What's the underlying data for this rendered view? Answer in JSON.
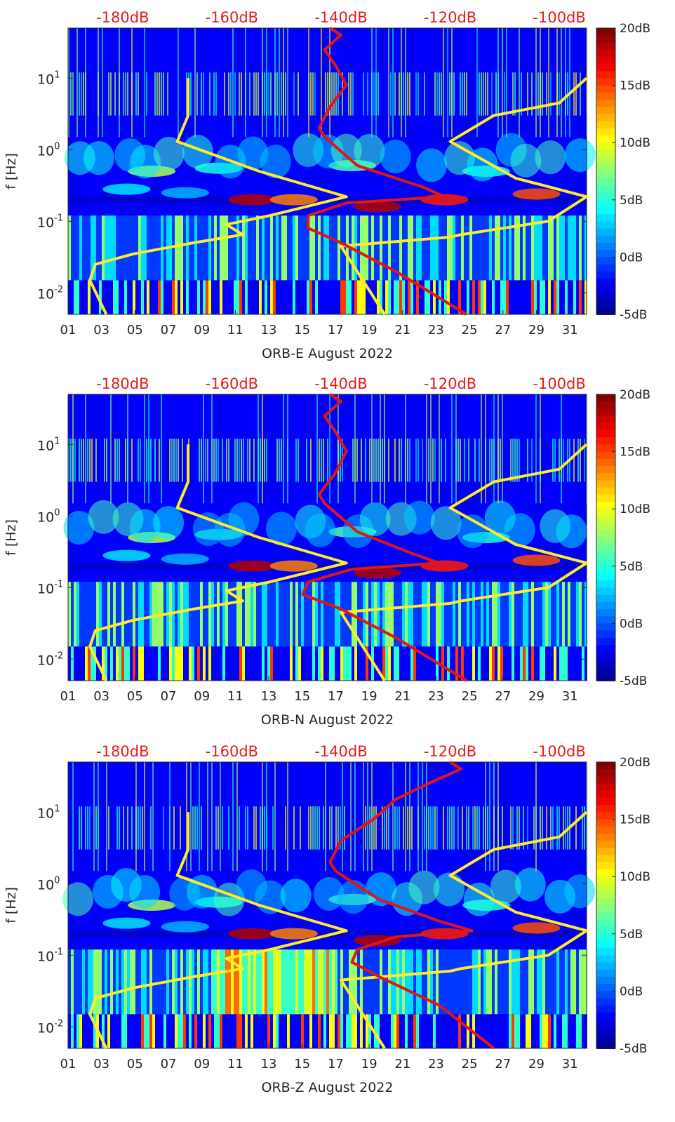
{
  "colors": {
    "db_label": "#e41b1b",
    "noise_model": "#ffeb26",
    "psd_curve": "#e21515",
    "axis": "#262626"
  },
  "colorbar": {
    "ticks": [
      "20dB",
      "15dB",
      "10dB",
      "5dB",
      "0dB",
      "-5dB"
    ],
    "range": [
      -5,
      20
    ]
  },
  "top_axis": {
    "labels": [
      "-180dB",
      "-160dB",
      "-140dB",
      "-120dB",
      "-100dB"
    ],
    "range": [
      -190,
      -95
    ]
  },
  "y_axis": {
    "label": "f [Hz]",
    "ticks": [
      {
        "base": "10",
        "exp": "1",
        "value": 10
      },
      {
        "base": "10",
        "exp": "0",
        "value": 1
      },
      {
        "base": "10",
        "exp": "-1",
        "value": 0.1
      },
      {
        "base": "10",
        "exp": "-2",
        "value": 0.01
      }
    ],
    "range_hz": [
      0.005,
      50
    ]
  },
  "x_axis": {
    "ticks": [
      "01",
      "03",
      "05",
      "07",
      "09",
      "11",
      "13",
      "15",
      "17",
      "19",
      "21",
      "23",
      "25",
      "27",
      "29",
      "31"
    ],
    "range_days": [
      1,
      32
    ]
  },
  "chart_data": [
    {
      "type": "heatmap",
      "title": "ORB-E August 2022",
      "xlabel": "ORB-E August 2022",
      "ylabel": "f [Hz]",
      "series": [
        {
          "name": "noise model (low, high)",
          "color": "#ffeb26",
          "points_db_hz": [
            [
              -183,
              0.005
            ],
            [
              -186,
              0.015
            ],
            [
              -185,
              0.025
            ],
            [
              -178,
              0.035
            ],
            [
              -167,
              0.05
            ],
            [
              -158,
              0.065
            ],
            [
              -161,
              0.09
            ],
            [
              -153,
              0.12
            ],
            [
              -139,
              0.22
            ],
            [
              -155,
              0.5
            ],
            [
              -170,
              1.3
            ],
            [
              -168,
              3
            ],
            [
              -168,
              10
            ],
            [
              -132,
              0.005
            ],
            [
              -140,
              0.045
            ],
            [
              -120,
              0.06
            ],
            [
              -118,
              0.065
            ],
            [
              -102,
              0.1
            ],
            [
              -95,
              0.22
            ],
            [
              -108,
              0.4
            ],
            [
              -120,
              1.3
            ],
            [
              -112,
              3
            ],
            [
              -100,
              4.5
            ],
            [
              -95,
              10
            ]
          ]
        },
        {
          "name": "PSD curve",
          "color": "#e21515",
          "points_db_hz": [
            [
              -117,
              0.005
            ],
            [
              -130,
              0.02
            ],
            [
              -140,
              0.05
            ],
            [
              -146,
              0.08
            ],
            [
              -146,
              0.12
            ],
            [
              -139,
              0.18
            ],
            [
              -121,
              0.22
            ],
            [
              -125,
              0.3
            ],
            [
              -137,
              0.6
            ],
            [
              -143,
              1.5
            ],
            [
              -144,
              2
            ],
            [
              -142,
              4
            ],
            [
              -139,
              8
            ],
            [
              -141,
              15
            ],
            [
              -143,
              25
            ],
            [
              -140,
              40
            ],
            [
              -142,
              50
            ]
          ]
        }
      ]
    },
    {
      "type": "heatmap",
      "title": "ORB-N August 2022",
      "xlabel": "ORB-N August 2022",
      "ylabel": "f [Hz]",
      "series": [
        {
          "name": "noise model (low, high)",
          "color": "#ffeb26",
          "points_db_hz": [
            [
              -183,
              0.005
            ],
            [
              -186,
              0.015
            ],
            [
              -185,
              0.025
            ],
            [
              -178,
              0.035
            ],
            [
              -167,
              0.05
            ],
            [
              -158,
              0.065
            ],
            [
              -161,
              0.09
            ],
            [
              -153,
              0.12
            ],
            [
              -139,
              0.22
            ],
            [
              -155,
              0.5
            ],
            [
              -170,
              1.3
            ],
            [
              -168,
              3
            ],
            [
              -168,
              10
            ],
            [
              -132,
              0.005
            ],
            [
              -140,
              0.045
            ],
            [
              -120,
              0.06
            ],
            [
              -118,
              0.065
            ],
            [
              -102,
              0.1
            ],
            [
              -95,
              0.22
            ],
            [
              -108,
              0.4
            ],
            [
              -120,
              1.3
            ],
            [
              -112,
              3
            ],
            [
              -100,
              4.5
            ],
            [
              -95,
              10
            ]
          ]
        },
        {
          "name": "PSD curve",
          "color": "#e21515",
          "points_db_hz": [
            [
              -117,
              0.005
            ],
            [
              -130,
              0.02
            ],
            [
              -140,
              0.05
            ],
            [
              -147,
              0.08
            ],
            [
              -146,
              0.12
            ],
            [
              -138,
              0.18
            ],
            [
              -122,
              0.22
            ],
            [
              -127,
              0.3
            ],
            [
              -137,
              0.6
            ],
            [
              -143,
              1.5
            ],
            [
              -144,
              2
            ],
            [
              -141,
              4
            ],
            [
              -139,
              8
            ],
            [
              -141,
              15
            ],
            [
              -143,
              25
            ],
            [
              -140,
              40
            ],
            [
              -142,
              50
            ]
          ]
        }
      ]
    },
    {
      "type": "heatmap",
      "title": "ORB-Z August 2022",
      "xlabel": "ORB-Z August 2022",
      "ylabel": "f [Hz]",
      "series": [
        {
          "name": "noise model (low, high)",
          "color": "#ffeb26",
          "points_db_hz": [
            [
              -183,
              0.005
            ],
            [
              -186,
              0.015
            ],
            [
              -185,
              0.025
            ],
            [
              -178,
              0.035
            ],
            [
              -167,
              0.05
            ],
            [
              -158,
              0.065
            ],
            [
              -161,
              0.09
            ],
            [
              -153,
              0.12
            ],
            [
              -139,
              0.22
            ],
            [
              -155,
              0.5
            ],
            [
              -170,
              1.3
            ],
            [
              -168,
              3
            ],
            [
              -168,
              10
            ],
            [
              -132,
              0.005
            ],
            [
              -140,
              0.045
            ],
            [
              -120,
              0.06
            ],
            [
              -118,
              0.065
            ],
            [
              -102,
              0.1
            ],
            [
              -95,
              0.22
            ],
            [
              -108,
              0.4
            ],
            [
              -120,
              1.3
            ],
            [
              -112,
              3
            ],
            [
              -100,
              4.5
            ],
            [
              -95,
              10
            ]
          ]
        },
        {
          "name": "PSD curve",
          "color": "#e21515",
          "points_db_hz": [
            [
              -112,
              0.005
            ],
            [
              -122,
              0.02
            ],
            [
              -133,
              0.05
            ],
            [
              -138,
              0.08
            ],
            [
              -137,
              0.12
            ],
            [
              -130,
              0.18
            ],
            [
              -116,
              0.22
            ],
            [
              -122,
              0.3
            ],
            [
              -133,
              0.6
            ],
            [
              -141,
              1.5
            ],
            [
              -142,
              2
            ],
            [
              -140,
              4
            ],
            [
              -134,
              8
            ],
            [
              -130,
              15
            ],
            [
              -124,
              25
            ],
            [
              -118,
              40
            ],
            [
              -120,
              50
            ]
          ]
        }
      ]
    }
  ]
}
